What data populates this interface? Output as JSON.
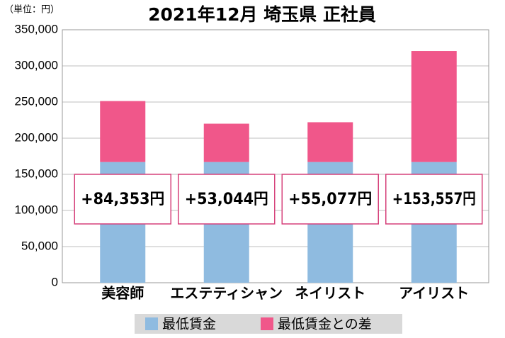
{
  "chart_data": {
    "type": "stacked-bar",
    "title": "2021年12月 埼玉県 正社員",
    "unit_label": "（単位：円）",
    "categories": [
      "美容師",
      "エステティシャン",
      "ネイリスト",
      "アイリスト"
    ],
    "series": [
      {
        "name": "最低賃金",
        "color": "#8fbbe0",
        "values": [
          167000,
          167000,
          167000,
          167000
        ]
      },
      {
        "name": "最低賃金との差",
        "color": "#f0578a",
        "values": [
          84353,
          53044,
          55077,
          153557
        ],
        "value_labels": [
          "+84,353円",
          "+53,044円",
          "+55,077円",
          "+153,557円"
        ]
      }
    ],
    "ylim": [
      0,
      350000
    ],
    "yticks": [
      0,
      {
        "value": 50000,
        "label": "50,000"
      },
      {
        "value": 100000,
        "label": "100,000"
      },
      {
        "value": 150000,
        "label": "150,000"
      },
      {
        "value": 200000,
        "label": "200,000"
      },
      {
        "value": 250000,
        "label": "250,000"
      },
      {
        "value": 300000,
        "label": "300,000"
      },
      {
        "value": 350000,
        "label": "350,000"
      }
    ],
    "grid": true
  }
}
